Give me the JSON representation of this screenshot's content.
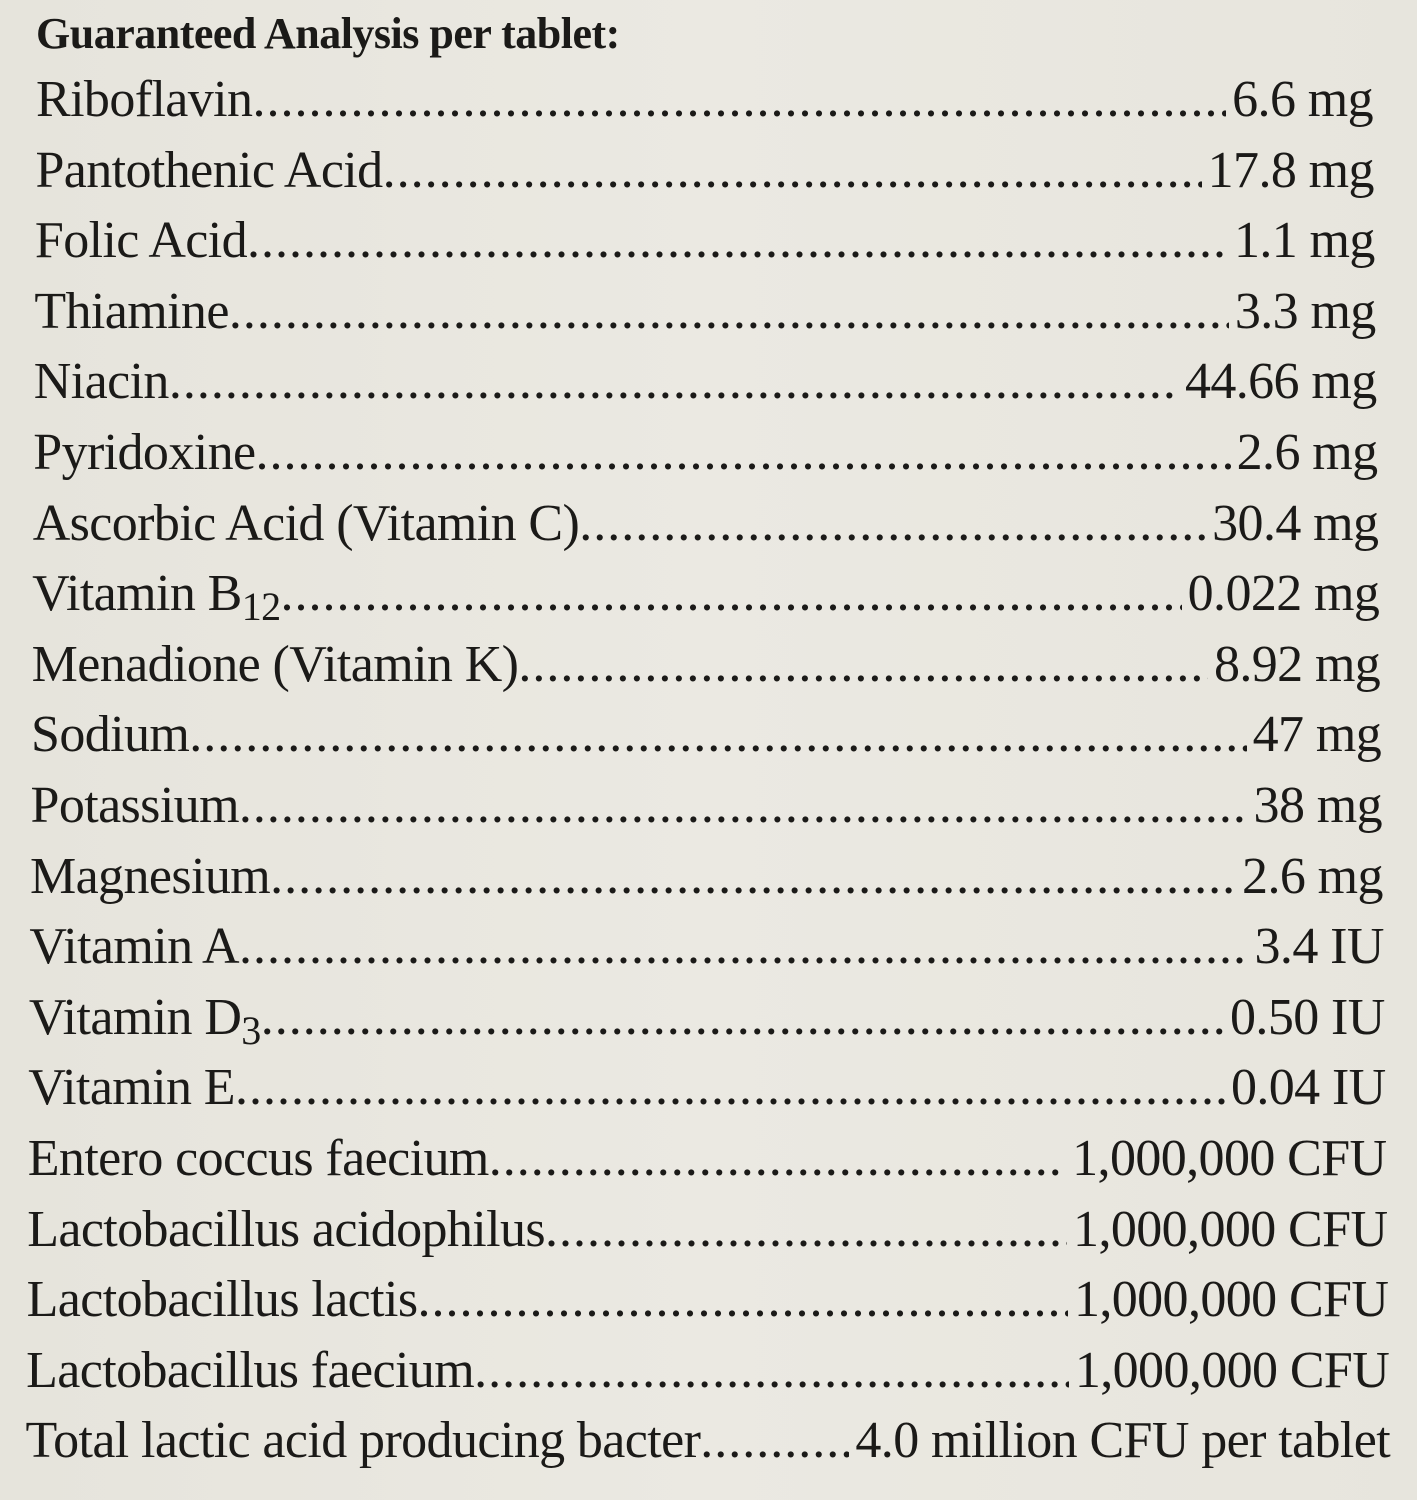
{
  "title": "Guaranteed Analysis per tablet:",
  "rows": [
    {
      "name": "Riboflavin",
      "sub": "",
      "value": "6.6 mg"
    },
    {
      "name": "Pantothenic Acid",
      "sub": "",
      "value": "17.8 mg"
    },
    {
      "name": "Folic Acid",
      "sub": "",
      "value": "1.1 mg"
    },
    {
      "name": "Thiamine",
      "sub": "",
      "value": "3.3 mg"
    },
    {
      "name": "Niacin",
      "sub": "",
      "value": "44.66 mg"
    },
    {
      "name": "Pyridoxine",
      "sub": "",
      "value": "2.6 mg"
    },
    {
      "name": "Ascorbic Acid (Vitamin C)",
      "sub": "",
      "value": "30.4 mg"
    },
    {
      "name": "Vitamin B",
      "sub": "12",
      "value": "0.022 mg"
    },
    {
      "name": "Menadione (Vitamin K)",
      "sub": "",
      "value": "8.92 mg"
    },
    {
      "name": "Sodium",
      "sub": "",
      "value": "47 mg"
    },
    {
      "name": "Potassium",
      "sub": "",
      "value": "38 mg"
    },
    {
      "name": "Magnesium",
      "sub": "",
      "value": "2.6 mg"
    },
    {
      "name": "Vitamin A",
      "sub": "",
      "value": "3.4 IU"
    },
    {
      "name": "Vitamin D",
      "sub": "3",
      "value": "0.50 IU"
    },
    {
      "name": "Vitamin E",
      "sub": "",
      "value": "0.04 IU"
    },
    {
      "name": "Entero coccus faecium",
      "sub": "",
      "value": "1,000,000 CFU"
    },
    {
      "name": "Lactobacillus acidophilus",
      "sub": "",
      "value": "1,000,000 CFU"
    },
    {
      "name": "Lactobacillus lactis",
      "sub": "",
      "value": "1,000,000 CFU"
    },
    {
      "name": "Lactobacillus faecium",
      "sub": "",
      "value": "1,000,000 CFU"
    },
    {
      "name": "Total lactic acid producing bacter",
      "sub": "",
      "value": "4.0 million CFU per tablet"
    }
  ]
}
